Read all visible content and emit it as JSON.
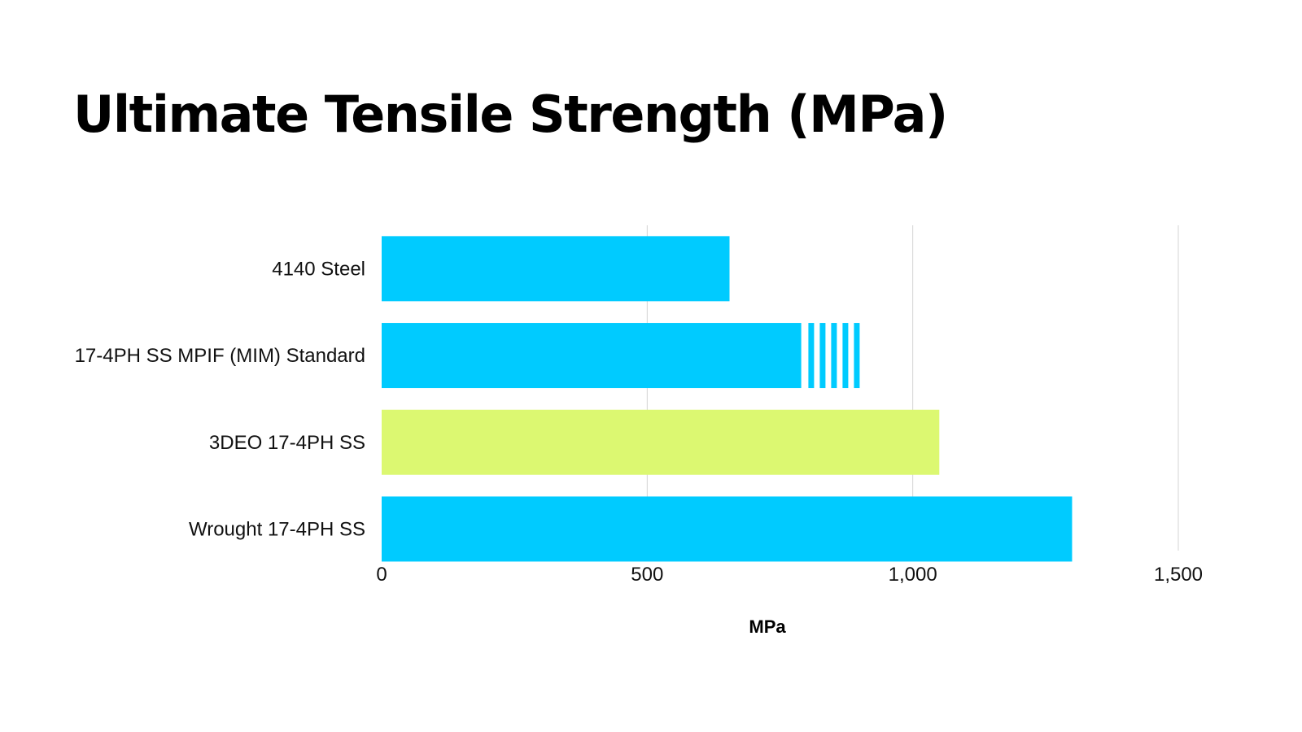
{
  "chart_data": {
    "type": "bar",
    "orientation": "horizontal",
    "title": "Ultimate Tensile Strength (MPa)",
    "xlabel": "MPa",
    "ylabel": "",
    "categories": [
      "4140 Steel",
      "17-4PH SS MPIF (MIM) Standard",
      "3DEO 17-4PH SS",
      "Wrought 17-4PH SS"
    ],
    "values": [
      655,
      900,
      1050,
      1300
    ],
    "solid_to": [
      655,
      790,
      1050,
      1300
    ],
    "hatched_range": [
      null,
      [
        790,
        900
      ],
      null,
      null
    ],
    "bar_colors": [
      "#00CBFF",
      "#00CBFF",
      "#DCF871",
      "#00CBFF"
    ],
    "xlim": [
      0,
      1500
    ],
    "xticks": [
      0,
      500,
      1000,
      1500
    ],
    "xtick_labels": [
      "0",
      "500",
      "1,000",
      "1,500"
    ],
    "grid": "vertical",
    "legend": "none"
  }
}
